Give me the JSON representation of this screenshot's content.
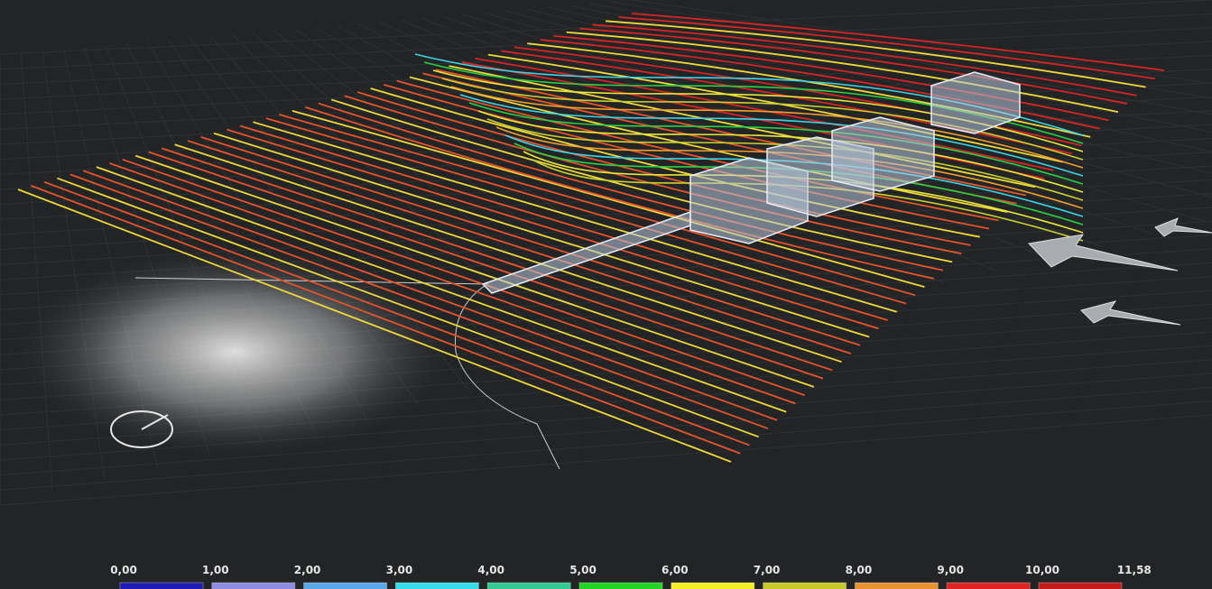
{
  "legend": {
    "labels": [
      "0,00",
      "1,00",
      "2,00",
      "3,00",
      "4,00",
      "5,00",
      "6,00",
      "7,00",
      "8,00",
      "9,00",
      "10,00",
      "11,58"
    ],
    "colors": [
      "#1c1cb4",
      "#8c8ce0",
      "#5aa8e8",
      "#34dcea",
      "#34c894",
      "#22d422",
      "#f2f024",
      "#c8c82a",
      "#e89232",
      "#e02222",
      "#c41a1a"
    ]
  }
}
